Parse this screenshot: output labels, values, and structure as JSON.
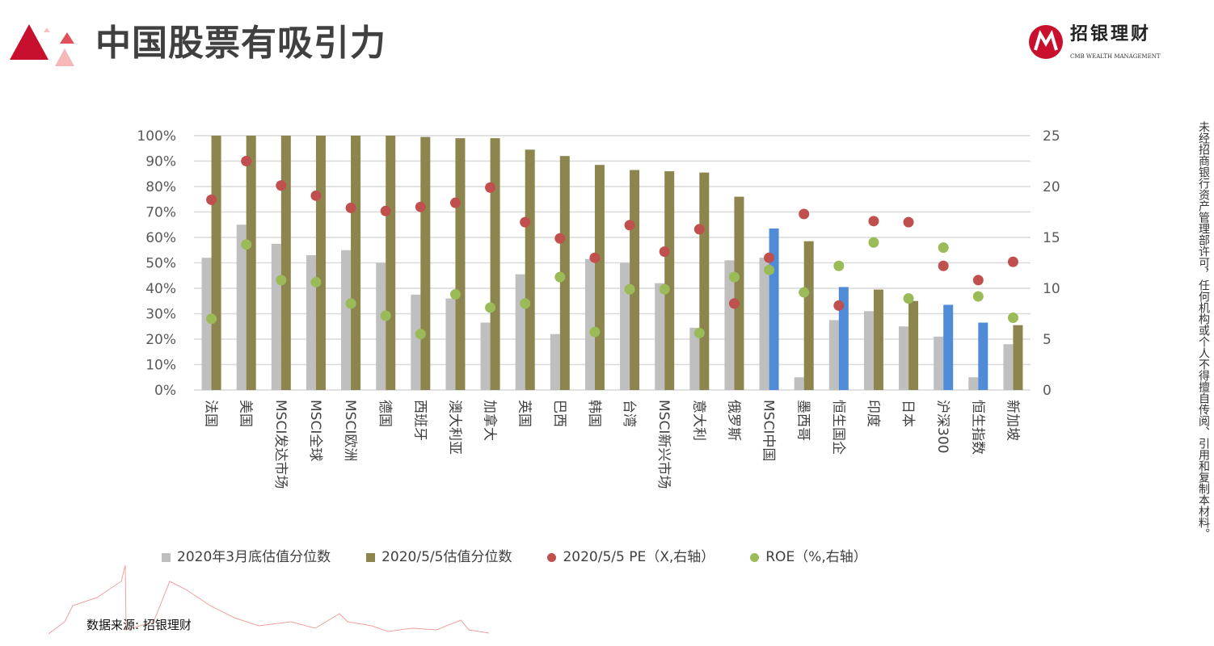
{
  "header": {
    "title": "中国股票有吸引力"
  },
  "brand": {
    "name": "招银理财",
    "subtitle": "CMB WEALTH MANAGEMENT"
  },
  "side_note": "未经招商银行资产管理部许可，任何机构或个人不得擅自传阅、引用和复制本材料。",
  "source": "数据来源: 招银理财",
  "colors": {
    "gray": "#bfbfbf",
    "olive": "#8c854e",
    "blue": "#4f8bd6",
    "red": "#c0504d",
    "green": "#9bbb59",
    "accent": "#c8102e"
  },
  "chart_data": {
    "type": "bar",
    "title": "",
    "categories": [
      "法国",
      "美国",
      "MSCI发达市场",
      "MSCI全球",
      "MSCI欧洲",
      "德国",
      "西班牙",
      "澳大利亚",
      "加拿大",
      "英国",
      "巴西",
      "韩国",
      "台湾",
      "MSCI新兴市场",
      "意大利",
      "俄罗斯",
      "MSCI中国",
      "墨西哥",
      "恒生国企",
      "印度",
      "日本",
      "沪深300",
      "恒生指数",
      "新加坡"
    ],
    "highlight_categories": [
      "MSCI中国",
      "恒生国企",
      "沪深300",
      "恒生指数"
    ],
    "series": [
      {
        "name": "2020年3月底估值分位数",
        "type": "bar",
        "axis": "left",
        "values": [
          52,
          65,
          57.5,
          53,
          55,
          50,
          37.5,
          36,
          26.5,
          45.5,
          22,
          51.5,
          50,
          42,
          24.5,
          51,
          52,
          5,
          27.5,
          31,
          25,
          21,
          5,
          18
        ]
      },
      {
        "name": "2020/5/5估值分位数",
        "type": "bar",
        "axis": "left",
        "values": [
          100,
          100,
          100,
          100,
          100,
          100,
          99.5,
          99,
          99,
          94.5,
          92,
          88.5,
          86.5,
          86,
          85.5,
          76,
          63.5,
          58.5,
          40.5,
          39.5,
          35,
          33.5,
          26.5,
          25.5
        ]
      },
      {
        "name": "2020/5/5 PE（X,右轴）",
        "type": "scatter",
        "axis": "right",
        "values": [
          18.7,
          22.5,
          20.1,
          19.1,
          17.9,
          17.6,
          18.0,
          18.4,
          19.9,
          16.5,
          14.9,
          13.0,
          16.2,
          13.6,
          15.8,
          8.5,
          13.0,
          17.3,
          8.3,
          16.6,
          16.5,
          12.2,
          10.8,
          12.6
        ]
      },
      {
        "name": "ROE（%,右轴）",
        "type": "scatter",
        "axis": "right",
        "values": [
          7.0,
          14.3,
          10.8,
          10.6,
          8.5,
          7.3,
          5.5,
          9.4,
          8.1,
          8.5,
          11.1,
          5.7,
          9.9,
          9.9,
          5.6,
          11.1,
          11.8,
          9.6,
          12.2,
          14.5,
          9.0,
          14.0,
          9.2,
          7.1
        ]
      }
    ],
    "y_left": {
      "ylim": [
        0,
        100
      ],
      "ticks": [
        "0%",
        "10%",
        "20%",
        "30%",
        "40%",
        "50%",
        "60%",
        "70%",
        "80%",
        "90%",
        "100%"
      ]
    },
    "y_right": {
      "ylim": [
        0,
        25
      ],
      "ticks": [
        "0",
        "5",
        "10",
        "15",
        "20",
        "25"
      ]
    },
    "grid": true,
    "legend": "bottom"
  }
}
